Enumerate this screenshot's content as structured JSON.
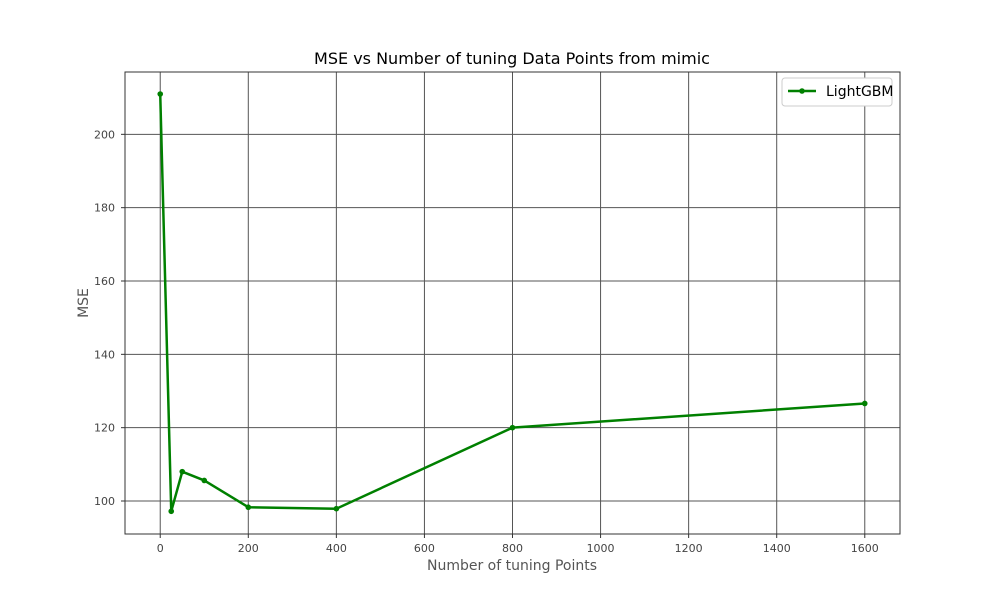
{
  "chart_data": {
    "type": "line",
    "title": "MSE vs Number of tuning Data Points from mimic",
    "xlabel": "Number of tuning Points",
    "ylabel": "MSE",
    "xlim": [
      -80,
      1680
    ],
    "ylim": [
      91,
      217
    ],
    "xticks": [
      0,
      200,
      400,
      600,
      800,
      1000,
      1200,
      1400,
      1600
    ],
    "yticks": [
      100,
      120,
      140,
      160,
      180,
      200
    ],
    "grid": true,
    "legend_position": "upper right",
    "series": [
      {
        "name": "LightGBM",
        "color": "#008000",
        "marker": "circle",
        "x": [
          0,
          25,
          50,
          100,
          200,
          400,
          800,
          1600
        ],
        "y": [
          211.0,
          97.2,
          108.0,
          105.6,
          98.3,
          97.9,
          120.0,
          126.6
        ]
      }
    ]
  }
}
